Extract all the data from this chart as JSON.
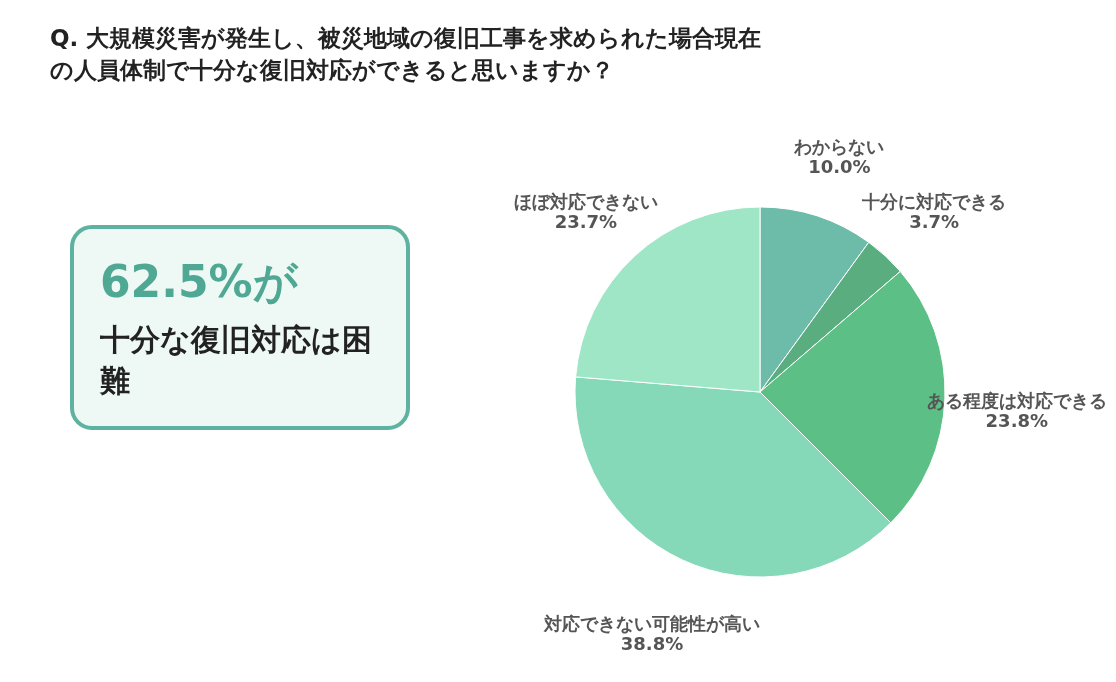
{
  "chart_data": {
    "type": "pie",
    "title": "Q. 大規模災害が発生し、被災地域の復旧工事を求められた場合現在の人員体制で十分な復旧対応ができると思いますか？",
    "categories": [
      "わからない",
      "十分に対応できる",
      "ある程度は対応できる",
      "対応できない可能性が高い",
      "ほぼ対応できない"
    ],
    "values": [
      10.0,
      3.7,
      23.8,
      38.8,
      23.7
    ],
    "value_labels": [
      "10.0%",
      "3.7%",
      "23.8%",
      "38.8%",
      "23.7%"
    ],
    "colors": [
      "#6dbcaa",
      "#5aad7f",
      "#5cbf85",
      "#86d9b8",
      "#9ee6c6"
    ],
    "annotations": [
      "62.5%が",
      "十分な復旧対応は困難"
    ]
  }
}
